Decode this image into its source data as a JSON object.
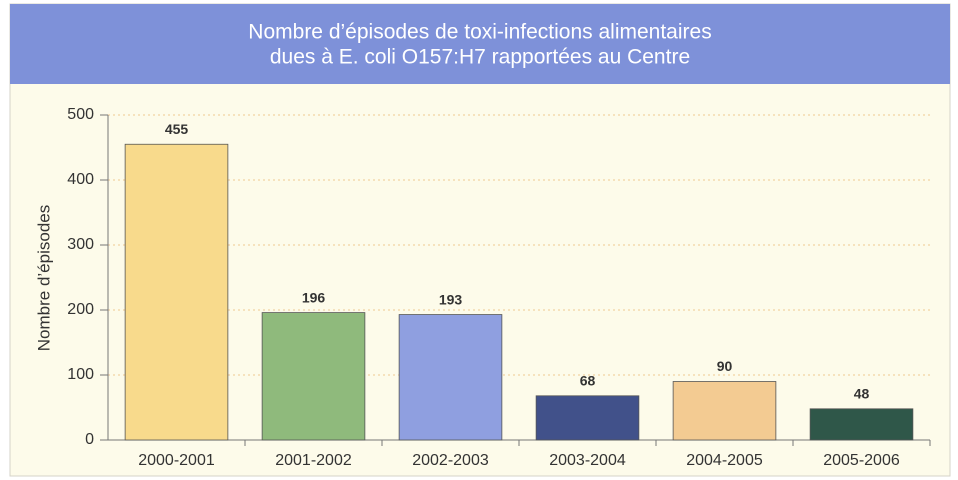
{
  "chart_data": {
    "type": "bar",
    "title": [
      "Nombre d’épisodes de toxi-infections alimentaires",
      "dues à E. coli O157:H7 rapportées au Centre"
    ],
    "y_label": "Nombre d’épisodes",
    "categories": [
      "2000-2001",
      "2001-2002",
      "2002-2003",
      "2003-2004",
      "2004-2005",
      "2005-2006"
    ],
    "values": [
      455,
      196,
      193,
      68,
      90,
      48
    ],
    "colors": [
      "#f8da8c",
      "#8fba7c",
      "#8f9fe0",
      "#41518a",
      "#f3cb92",
      "#2f5749"
    ],
    "ylim": [
      0,
      500
    ],
    "yticks": [
      0,
      100,
      200,
      300,
      400,
      500
    ],
    "grid": true
  }
}
